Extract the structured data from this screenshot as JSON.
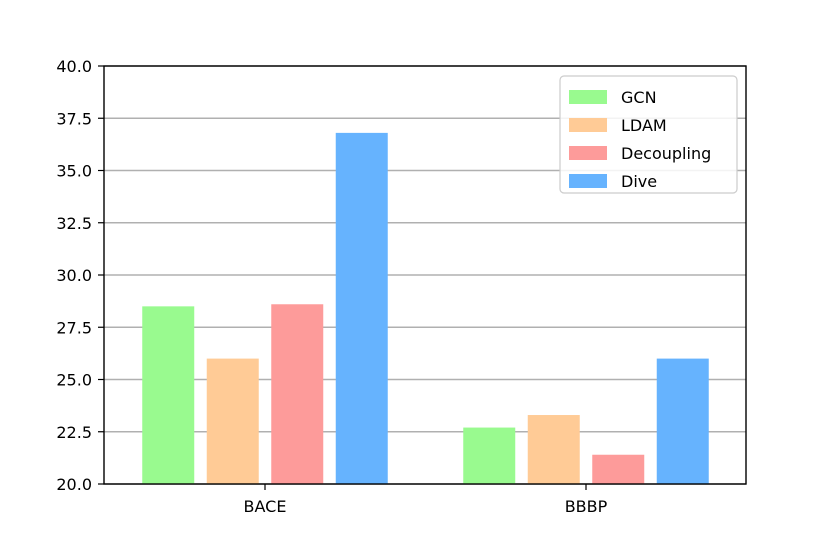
{
  "chart_data": {
    "type": "bar",
    "title": "",
    "xlabel": "",
    "ylabel": "",
    "categories": [
      "BACE",
      "BBBP"
    ],
    "series": [
      {
        "name": "GCN",
        "color": "#99fa8f",
        "values": [
          28.5,
          22.7
        ]
      },
      {
        "name": "LDAM",
        "color": "#ffcb96",
        "values": [
          26.0,
          23.3
        ]
      },
      {
        "name": "Decoupling",
        "color": "#fd9b9a",
        "values": [
          28.6,
          21.4
        ]
      },
      {
        "name": "Dive",
        "color": "#66b3fe",
        "values": [
          36.8,
          26.0
        ]
      }
    ],
    "ylim": [
      20.0,
      40.0
    ],
    "yticks": [
      "20.0",
      "22.5",
      "25.0",
      "27.5",
      "30.0",
      "32.5",
      "35.0",
      "37.5",
      "40.0"
    ],
    "grid": "horizontal",
    "legend_position": "top-right"
  }
}
